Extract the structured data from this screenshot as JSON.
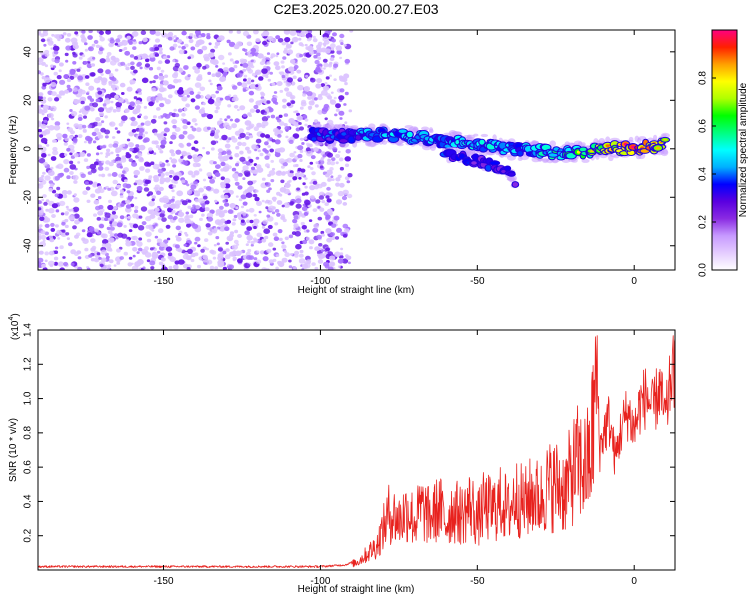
{
  "chart_data": [
    {
      "type": "heatmap",
      "title": "C2E3.2025.020.00.27.E03",
      "xlabel": "Height of straight line (km)",
      "ylabel": "Frequency (Hz)",
      "xlim": [
        -190,
        13
      ],
      "ylim": [
        -50,
        49
      ],
      "xticks": [
        -150,
        -100,
        -50,
        0
      ],
      "yticks": [
        -40,
        -20,
        0,
        20,
        40
      ],
      "colorbar": {
        "label": "Normalized spectral amplitude",
        "range": [
          0,
          1
        ],
        "ticks": [
          0.0,
          0.2,
          0.4,
          0.6,
          0.8
        ],
        "colors": [
          "#ffffff",
          "#e4ccff",
          "#c79aff",
          "#8a2be2",
          "#5a00e0",
          "#0000ff",
          "#00b0ff",
          "#00ffff",
          "#00ff80",
          "#00ff00",
          "#b0ff00",
          "#ffff00",
          "#ffa000",
          "#ff2000",
          "#ff0080"
        ]
      },
      "regions": [
        {
          "kind": "noise",
          "x_range": [
            -190,
            -90
          ],
          "freq_range": [
            -50,
            49
          ],
          "amplitude_range": [
            0.0,
            0.1
          ]
        },
        {
          "kind": "signal-track",
          "points": [
            {
              "x": -103,
              "freq": 6,
              "amplitude": 0.3
            },
            {
              "x": -90,
              "freq": 5,
              "amplitude": 0.35
            },
            {
              "x": -80,
              "freq": 6,
              "amplitude": 0.45
            },
            {
              "x": -70,
              "freq": 5,
              "amplitude": 0.45
            },
            {
              "x": -60,
              "freq": 3,
              "amplitude": 0.4
            },
            {
              "x": -50,
              "freq": 2,
              "amplitude": 0.45
            },
            {
              "x": -40,
              "freq": 0,
              "amplitude": 0.4
            },
            {
              "x": -30,
              "freq": -1,
              "amplitude": 0.45
            },
            {
              "x": -20,
              "freq": -2,
              "amplitude": 0.55
            },
            {
              "x": -10,
              "freq": 0,
              "amplitude": 0.7
            },
            {
              "x": 0,
              "freq": 0,
              "amplitude": 0.85
            },
            {
              "x": 10,
              "freq": 2,
              "amplitude": 0.75
            }
          ]
        },
        {
          "kind": "signal-branch",
          "points": [
            {
              "x": -60,
              "freq": -2,
              "amplitude": 0.3
            },
            {
              "x": -50,
              "freq": -5,
              "amplitude": 0.3
            },
            {
              "x": -40,
              "freq": -9,
              "amplitude": 0.3
            },
            {
              "x": -38,
              "freq": -14,
              "amplitude": 0.25
            }
          ]
        }
      ]
    },
    {
      "type": "line",
      "title": "",
      "xlabel": "Height of straight line (km)",
      "ylabel": "SNR (10 * v/v)",
      "yscale_label": "(x10",
      "yscale_exp": "4",
      "xlim": [
        -190,
        13
      ],
      "ylim": [
        0,
        1.4
      ],
      "xticks": [
        -150,
        -100,
        -50,
        0
      ],
      "yticks": [
        0.2,
        0.4,
        0.6,
        0.8,
        1.0,
        1.2,
        1.4
      ],
      "color": "#e8221e",
      "x": [
        -190,
        -180,
        -170,
        -160,
        -150,
        -140,
        -130,
        -120,
        -110,
        -100,
        -92,
        -88,
        -85,
        -82,
        -80,
        -78,
        -75,
        -72,
        -70,
        -68,
        -65,
        -62,
        -60,
        -58,
        -55,
        -52,
        -50,
        -48,
        -45,
        -42,
        -40,
        -38,
        -35,
        -32,
        -30,
        -28,
        -25,
        -22,
        -20,
        -18,
        -16,
        -14,
        -12,
        -11,
        -10,
        -8,
        -6,
        -4,
        -2,
        0,
        2,
        4,
        6,
        8,
        10,
        12
      ],
      "y": [
        0.02,
        0.02,
        0.02,
        0.02,
        0.02,
        0.02,
        0.02,
        0.02,
        0.02,
        0.02,
        0.03,
        0.06,
        0.12,
        0.18,
        0.3,
        0.42,
        0.36,
        0.44,
        0.35,
        0.45,
        0.38,
        0.46,
        0.34,
        0.44,
        0.4,
        0.48,
        0.36,
        0.46,
        0.44,
        0.5,
        0.42,
        0.54,
        0.48,
        0.56,
        0.5,
        0.6,
        0.62,
        0.58,
        0.7,
        0.78,
        0.74,
        0.8,
        1.4,
        0.75,
        0.85,
        0.95,
        0.7,
        0.9,
        1.0,
        0.88,
        1.05,
        1.1,
        1.0,
        1.15,
        0.95,
        1.25
      ]
    }
  ]
}
